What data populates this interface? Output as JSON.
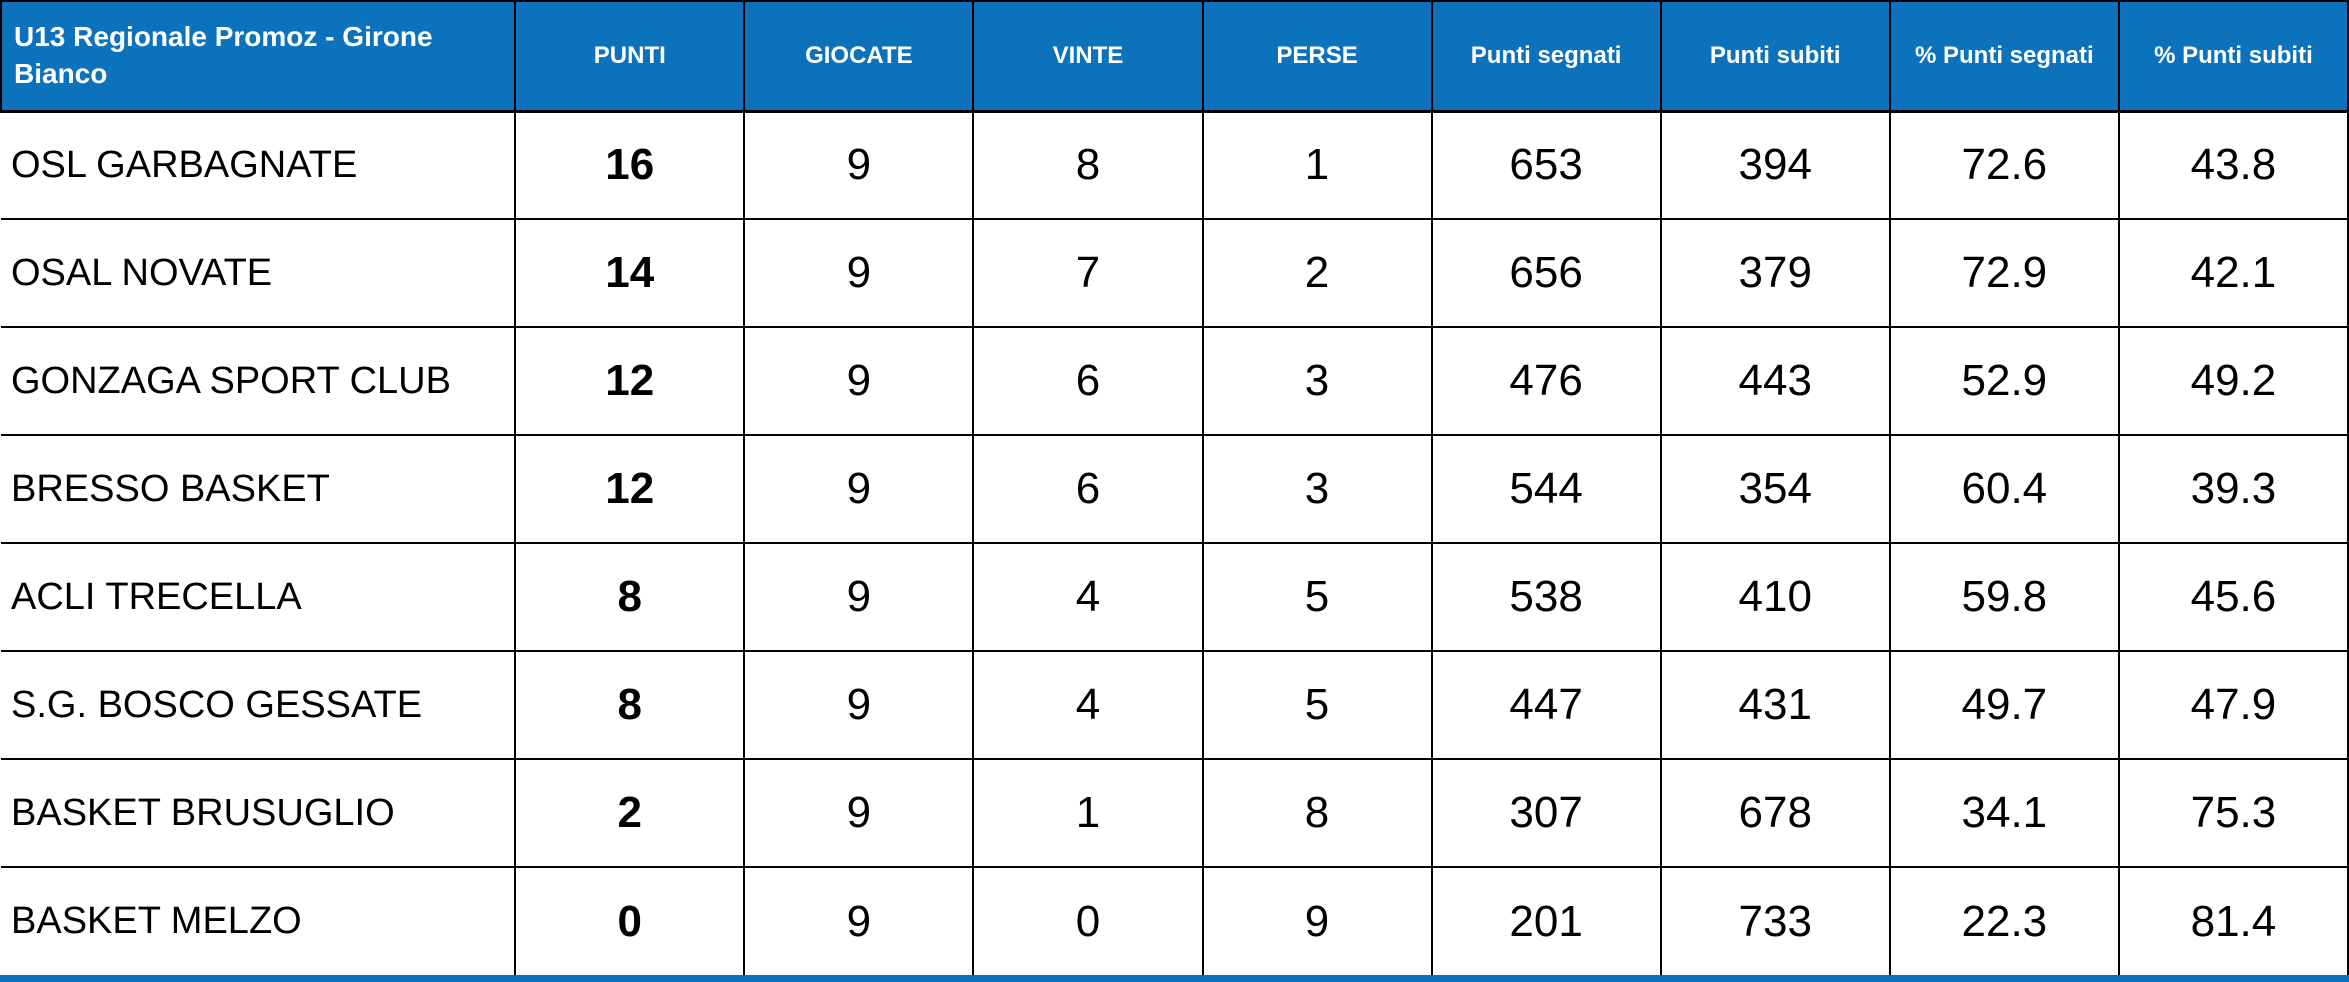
{
  "colors": {
    "header_bg": "#0D72BC",
    "header_text": "#FFFFFF",
    "body_bg": "#FFFFFF",
    "body_text": "#000000",
    "border": "#000000",
    "footer_bar": "#0D72BC"
  },
  "chart_data": {
    "type": "table",
    "title": "U13 Regionale Promoz - Girone Bianco",
    "columns": [
      "PUNTI",
      "GIOCATE",
      "VINTE",
      "PERSE",
      "Punti segnati",
      "Punti subiti",
      "% Punti segnati",
      "% Punti subiti"
    ],
    "rows": [
      [
        "OSL GARBAGNATE",
        16,
        9,
        8,
        1,
        653,
        394,
        72.6,
        43.8
      ],
      [
        "OSAL NOVATE",
        14,
        9,
        7,
        2,
        656,
        379,
        72.9,
        42.1
      ],
      [
        "GONZAGA SPORT CLUB",
        12,
        9,
        6,
        3,
        476,
        443,
        52.9,
        49.2
      ],
      [
        "BRESSO BASKET",
        12,
        9,
        6,
        3,
        544,
        354,
        60.4,
        39.3
      ],
      [
        "ACLI TRECELLA",
        8,
        9,
        4,
        5,
        538,
        410,
        59.8,
        45.6
      ],
      [
        "S.G. BOSCO GESSATE",
        8,
        9,
        4,
        5,
        447,
        431,
        49.7,
        47.9
      ],
      [
        "BASKET BRUSUGLIO",
        2,
        9,
        1,
        8,
        307,
        678,
        34.1,
        75.3
      ],
      [
        "BASKET MELZO",
        0,
        9,
        0,
        9,
        201,
        733,
        22.3,
        81.4
      ]
    ]
  }
}
